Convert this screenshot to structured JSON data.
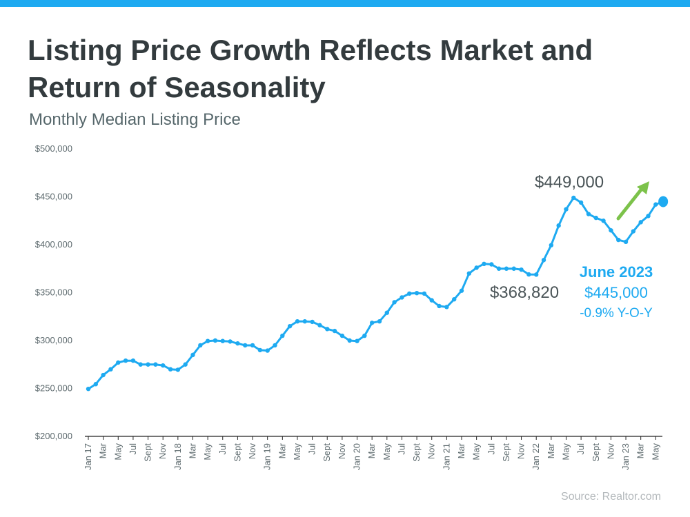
{
  "header": {
    "title": "Listing Price Growth Reflects Market and Return of Seasonality",
    "subtitle": "Monthly Median Listing Price"
  },
  "footer": {
    "source": "Source: Realtor.com"
  },
  "colors": {
    "accent": "#1eaaf1",
    "arrow": "#7cc24a",
    "text": "#333b3e"
  },
  "chart_data": {
    "type": "line",
    "title": "Listing Price Growth Reflects Market and Return of Seasonality",
    "subtitle": "Monthly Median Listing Price",
    "xlabel": "",
    "ylabel": "",
    "ylim": [
      200000,
      500000
    ],
    "yticks": [
      200000,
      250000,
      300000,
      350000,
      400000,
      450000,
      500000
    ],
    "ytick_labels": [
      "$200,000",
      "$250,000",
      "$300,000",
      "$350,000",
      "$400,000",
      "$450,000",
      "$500,000"
    ],
    "x_tick_labels": [
      "Jan 17",
      "Mar",
      "May",
      "Jul",
      "Sept",
      "Nov",
      "Jan 18",
      "Mar",
      "May",
      "Jul",
      "Sept",
      "Nov",
      "Jan 19",
      "Mar",
      "May",
      "Jul",
      "Sept",
      "Nov",
      "Jan 20",
      "Mar",
      "May",
      "Jul",
      "Sept",
      "Nov",
      "Jan 21",
      "Mar",
      "May",
      "Jul",
      "Sept",
      "Nov",
      "Jan 22",
      "Mar",
      "May",
      "Jul",
      "Sept",
      "Nov",
      "Jan 23",
      "Mar",
      "May"
    ],
    "x_start": "Jan 2017",
    "x_end": "Jun 2023",
    "grid": false,
    "series": [
      {
        "values": [
          249500,
          254500,
          264000,
          270000,
          277000,
          279000,
          279000,
          275000,
          275000,
          275000,
          274000,
          270000,
          269500,
          275000,
          285000,
          295000,
          299500,
          300000,
          299500,
          299000,
          297000,
          295000,
          295000,
          290000,
          289500,
          295000,
          305000,
          315000,
          320000,
          320000,
          319500,
          316000,
          312000,
          310000,
          305000,
          300000,
          299500,
          305000,
          318500,
          320000,
          329000,
          340000,
          345000,
          349000,
          349500,
          349000,
          342000,
          336000,
          335000,
          343000,
          352000,
          370000,
          376000,
          380000,
          379500,
          375000,
          375000,
          375000,
          374000,
          369000,
          368820,
          384000,
          399500,
          420000,
          437000,
          449000,
          444000,
          432000,
          428000,
          425000,
          415000,
          405000,
          403000,
          414000,
          423500,
          430000,
          442000,
          445000
        ]
      }
    ],
    "annotations": {
      "peak_label": "$449,000",
      "low_label": "$368,820",
      "latest_title": "June 2023",
      "latest_value": "$445,000",
      "latest_change": "-0.9% Y-O-Y"
    }
  }
}
